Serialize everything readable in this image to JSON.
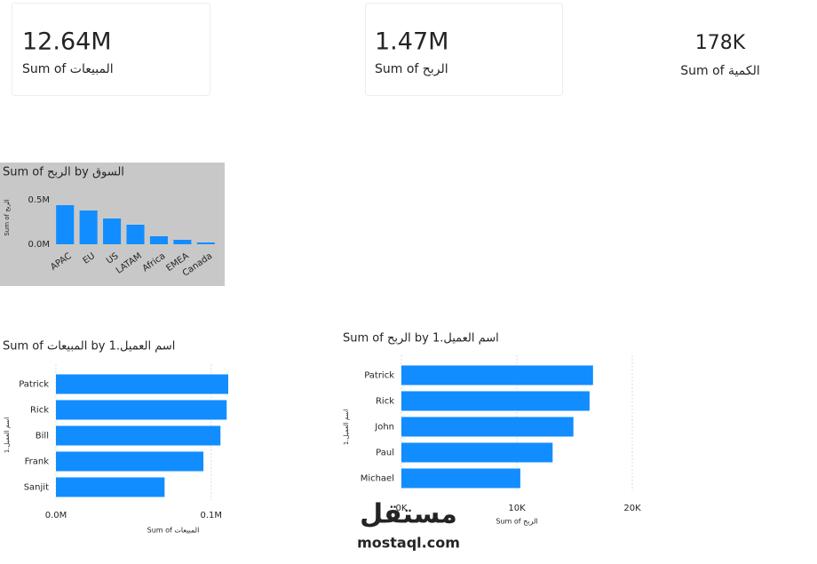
{
  "cards": [
    {
      "value": "12.64M",
      "label": "Sum of المبيعات"
    },
    {
      "value": "1.47M",
      "label": "Sum of الربح"
    },
    {
      "value": "178K",
      "label": "Sum of الكمية"
    }
  ],
  "chart_data": [
    {
      "type": "bar",
      "title": "Sum of الربح by السوق",
      "y_label": "Sum of الربح",
      "categories": [
        "APAC",
        "EU",
        "US",
        "LATAM",
        "Africa",
        "EMEA",
        "Canada"
      ],
      "values": [
        440000,
        380000,
        290000,
        220000,
        90000,
        50000,
        20000
      ],
      "color": "#118dff",
      "ylim": [
        0,
        600000
      ],
      "yticks": [
        {
          "value": 0,
          "label": "0.0M"
        },
        {
          "value": 500000,
          "label": "0.5M"
        }
      ]
    },
    {
      "type": "hbar",
      "title": "Sum of المبيعات by اسم العميل.1",
      "y_label": "اسم العميل.1",
      "x_label": "Sum of المبيعات",
      "categories": [
        "Patrick",
        "Rick",
        "Bill",
        "Frank",
        "Sanjit"
      ],
      "values": [
        111000,
        110000,
        106000,
        95000,
        70000
      ],
      "color": "#118dff",
      "xlim": [
        0,
        115000
      ],
      "xticks": [
        {
          "value": 0,
          "label": "0.0M"
        },
        {
          "value": 100000,
          "label": "0.1M"
        }
      ],
      "grid": true
    },
    {
      "type": "hbar",
      "title": "Sum of الربح by اسم العميل.1",
      "y_label": "اسم العميل.1",
      "x_label": "Sum of الربح",
      "categories": [
        "Patrick",
        "Rick",
        "John",
        "Paul",
        "Michael"
      ],
      "values": [
        16600,
        16300,
        14900,
        13100,
        10300
      ],
      "color": "#118dff",
      "xlim": [
        0,
        20000
      ],
      "xticks": [
        {
          "value": 0,
          "label": "0K"
        },
        {
          "value": 10000,
          "label": "10K"
        },
        {
          "value": 20000,
          "label": "20K"
        }
      ],
      "grid": true
    }
  ],
  "watermark": [
    "مستقل",
    "mostaql.com"
  ]
}
